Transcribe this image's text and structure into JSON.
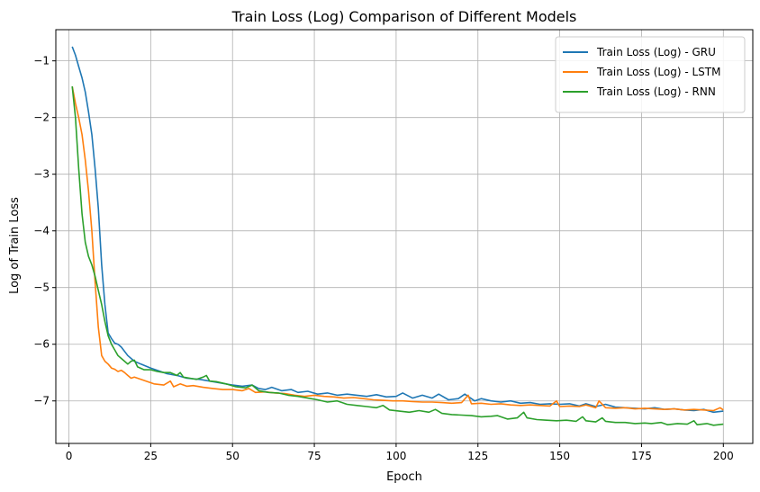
{
  "chart_data": {
    "type": "line",
    "title": "Train Loss (Log) Comparison of Different Models",
    "xlabel": "Epoch",
    "ylabel": "Log of Train Loss",
    "xlim": [
      -4,
      209
    ],
    "ylim": [
      -7.75,
      -0.45
    ],
    "xticks": [
      0,
      25,
      50,
      75,
      100,
      125,
      150,
      175,
      200
    ],
    "yticks": [
      -1,
      -2,
      -3,
      -4,
      -5,
      -6,
      -7
    ],
    "grid": true,
    "legend_position": "top-right",
    "series": [
      {
        "name": "Train Loss (Log) - GRU",
        "color": "#1f77b4",
        "points": [
          [
            1,
            -0.75
          ],
          [
            2,
            -0.9
          ],
          [
            3,
            -1.1
          ],
          [
            4,
            -1.3
          ],
          [
            5,
            -1.55
          ],
          [
            6,
            -1.9
          ],
          [
            7,
            -2.3
          ],
          [
            8,
            -2.9
          ],
          [
            9,
            -3.6
          ],
          [
            10,
            -4.6
          ],
          [
            11,
            -5.3
          ],
          [
            12,
            -5.8
          ],
          [
            13,
            -5.9
          ],
          [
            14,
            -5.98
          ],
          [
            15,
            -6.0
          ],
          [
            16,
            -6.05
          ],
          [
            18,
            -6.2
          ],
          [
            20,
            -6.3
          ],
          [
            22,
            -6.35
          ],
          [
            25,
            -6.42
          ],
          [
            28,
            -6.48
          ],
          [
            30,
            -6.52
          ],
          [
            33,
            -6.55
          ],
          [
            36,
            -6.6
          ],
          [
            40,
            -6.62
          ],
          [
            43,
            -6.65
          ],
          [
            46,
            -6.68
          ],
          [
            50,
            -6.72
          ],
          [
            53,
            -6.74
          ],
          [
            56,
            -6.72
          ],
          [
            58,
            -6.78
          ],
          [
            60,
            -6.8
          ],
          [
            62,
            -6.76
          ],
          [
            65,
            -6.82
          ],
          [
            68,
            -6.8
          ],
          [
            70,
            -6.85
          ],
          [
            73,
            -6.83
          ],
          [
            76,
            -6.88
          ],
          [
            79,
            -6.86
          ],
          [
            82,
            -6.9
          ],
          [
            85,
            -6.88
          ],
          [
            88,
            -6.9
          ],
          [
            91,
            -6.92
          ],
          [
            94,
            -6.89
          ],
          [
            97,
            -6.93
          ],
          [
            100,
            -6.92
          ],
          [
            102,
            -6.86
          ],
          [
            105,
            -6.95
          ],
          [
            108,
            -6.9
          ],
          [
            111,
            -6.95
          ],
          [
            113,
            -6.88
          ],
          [
            116,
            -6.98
          ],
          [
            119,
            -6.96
          ],
          [
            121,
            -6.88
          ],
          [
            124,
            -7.0
          ],
          [
            126,
            -6.96
          ],
          [
            129,
            -7.0
          ],
          [
            132,
            -7.02
          ],
          [
            135,
            -7.0
          ],
          [
            138,
            -7.04
          ],
          [
            141,
            -7.03
          ],
          [
            144,
            -7.06
          ],
          [
            147,
            -7.05
          ],
          [
            150,
            -7.06
          ],
          [
            153,
            -7.05
          ],
          [
            156,
            -7.09
          ],
          [
            158,
            -7.05
          ],
          [
            161,
            -7.1
          ],
          [
            164,
            -7.06
          ],
          [
            167,
            -7.11
          ],
          [
            170,
            -7.12
          ],
          [
            173,
            -7.13
          ],
          [
            176,
            -7.14
          ],
          [
            179,
            -7.12
          ],
          [
            182,
            -7.15
          ],
          [
            185,
            -7.14
          ],
          [
            188,
            -7.16
          ],
          [
            191,
            -7.17
          ],
          [
            194,
            -7.15
          ],
          [
            197,
            -7.2
          ],
          [
            200,
            -7.18
          ]
        ]
      },
      {
        "name": "Train Loss (Log) - LSTM",
        "color": "#ff7f0e",
        "points": [
          [
            1,
            -1.45
          ],
          [
            2,
            -1.75
          ],
          [
            3,
            -2.0
          ],
          [
            4,
            -2.3
          ],
          [
            5,
            -2.75
          ],
          [
            6,
            -3.3
          ],
          [
            7,
            -4.0
          ],
          [
            8,
            -4.9
          ],
          [
            9,
            -5.7
          ],
          [
            10,
            -6.2
          ],
          [
            11,
            -6.3
          ],
          [
            12,
            -6.35
          ],
          [
            13,
            -6.42
          ],
          [
            14,
            -6.44
          ],
          [
            15,
            -6.48
          ],
          [
            16,
            -6.46
          ],
          [
            17,
            -6.5
          ],
          [
            18,
            -6.55
          ],
          [
            19,
            -6.6
          ],
          [
            20,
            -6.58
          ],
          [
            22,
            -6.62
          ],
          [
            24,
            -6.66
          ],
          [
            26,
            -6.7
          ],
          [
            29,
            -6.72
          ],
          [
            31,
            -6.65
          ],
          [
            32,
            -6.75
          ],
          [
            34,
            -6.7
          ],
          [
            36,
            -6.74
          ],
          [
            38,
            -6.73
          ],
          [
            41,
            -6.76
          ],
          [
            44,
            -6.78
          ],
          [
            47,
            -6.8
          ],
          [
            50,
            -6.8
          ],
          [
            53,
            -6.82
          ],
          [
            55,
            -6.78
          ],
          [
            57,
            -6.85
          ],
          [
            60,
            -6.84
          ],
          [
            63,
            -6.86
          ],
          [
            66,
            -6.87
          ],
          [
            69,
            -6.9
          ],
          [
            72,
            -6.92
          ],
          [
            75,
            -6.9
          ],
          [
            78,
            -6.92
          ],
          [
            81,
            -6.93
          ],
          [
            84,
            -6.95
          ],
          [
            87,
            -6.94
          ],
          [
            90,
            -6.96
          ],
          [
            93,
            -6.98
          ],
          [
            96,
            -6.99
          ],
          [
            99,
            -7.0
          ],
          [
            102,
            -7.0
          ],
          [
            105,
            -7.01
          ],
          [
            108,
            -7.02
          ],
          [
            111,
            -7.02
          ],
          [
            114,
            -7.03
          ],
          [
            117,
            -7.04
          ],
          [
            120,
            -7.03
          ],
          [
            122,
            -6.9
          ],
          [
            123,
            -7.05
          ],
          [
            126,
            -7.04
          ],
          [
            129,
            -7.06
          ],
          [
            132,
            -7.05
          ],
          [
            135,
            -7.07
          ],
          [
            138,
            -7.08
          ],
          [
            141,
            -7.07
          ],
          [
            144,
            -7.08
          ],
          [
            147,
            -7.09
          ],
          [
            149,
            -7.0
          ],
          [
            150,
            -7.1
          ],
          [
            153,
            -7.09
          ],
          [
            156,
            -7.1
          ],
          [
            158,
            -7.07
          ],
          [
            161,
            -7.12
          ],
          [
            162,
            -7.0
          ],
          [
            164,
            -7.12
          ],
          [
            167,
            -7.13
          ],
          [
            170,
            -7.12
          ],
          [
            173,
            -7.14
          ],
          [
            176,
            -7.13
          ],
          [
            179,
            -7.14
          ],
          [
            182,
            -7.15
          ],
          [
            185,
            -7.14
          ],
          [
            188,
            -7.16
          ],
          [
            191,
            -7.15
          ],
          [
            194,
            -7.16
          ],
          [
            197,
            -7.17
          ],
          [
            199,
            -7.12
          ],
          [
            200,
            -7.16
          ]
        ]
      },
      {
        "name": "Train Loss (Log) - RNN",
        "color": "#2ca02c",
        "points": [
          [
            1,
            -1.45
          ],
          [
            2,
            -2.0
          ],
          [
            3,
            -2.9
          ],
          [
            4,
            -3.7
          ],
          [
            5,
            -4.2
          ],
          [
            6,
            -4.45
          ],
          [
            7,
            -4.6
          ],
          [
            8,
            -4.8
          ],
          [
            9,
            -5.05
          ],
          [
            10,
            -5.3
          ],
          [
            11,
            -5.6
          ],
          [
            12,
            -5.85
          ],
          [
            13,
            -6.0
          ],
          [
            14,
            -6.1
          ],
          [
            15,
            -6.2
          ],
          [
            16,
            -6.25
          ],
          [
            17,
            -6.3
          ],
          [
            18,
            -6.35
          ],
          [
            19,
            -6.3
          ],
          [
            20,
            -6.28
          ],
          [
            21,
            -6.4
          ],
          [
            23,
            -6.45
          ],
          [
            25,
            -6.45
          ],
          [
            27,
            -6.48
          ],
          [
            29,
            -6.5
          ],
          [
            31,
            -6.5
          ],
          [
            33,
            -6.55
          ],
          [
            34,
            -6.5
          ],
          [
            35,
            -6.58
          ],
          [
            37,
            -6.6
          ],
          [
            39,
            -6.62
          ],
          [
            41,
            -6.58
          ],
          [
            42,
            -6.55
          ],
          [
            43,
            -6.65
          ],
          [
            45,
            -6.66
          ],
          [
            48,
            -6.7
          ],
          [
            51,
            -6.75
          ],
          [
            54,
            -6.77
          ],
          [
            56,
            -6.72
          ],
          [
            58,
            -6.82
          ],
          [
            61,
            -6.85
          ],
          [
            64,
            -6.86
          ],
          [
            67,
            -6.9
          ],
          [
            70,
            -6.92
          ],
          [
            73,
            -6.95
          ],
          [
            76,
            -6.98
          ],
          [
            79,
            -7.02
          ],
          [
            82,
            -7.0
          ],
          [
            85,
            -7.06
          ],
          [
            88,
            -7.08
          ],
          [
            91,
            -7.1
          ],
          [
            94,
            -7.12
          ],
          [
            96,
            -7.08
          ],
          [
            98,
            -7.16
          ],
          [
            101,
            -7.18
          ],
          [
            104,
            -7.2
          ],
          [
            107,
            -7.17
          ],
          [
            110,
            -7.2
          ],
          [
            112,
            -7.15
          ],
          [
            114,
            -7.22
          ],
          [
            117,
            -7.24
          ],
          [
            120,
            -7.25
          ],
          [
            123,
            -7.26
          ],
          [
            126,
            -7.28
          ],
          [
            129,
            -7.27
          ],
          [
            131,
            -7.26
          ],
          [
            134,
            -7.32
          ],
          [
            137,
            -7.3
          ],
          [
            139,
            -7.2
          ],
          [
            140,
            -7.3
          ],
          [
            143,
            -7.33
          ],
          [
            146,
            -7.34
          ],
          [
            149,
            -7.35
          ],
          [
            152,
            -7.34
          ],
          [
            155,
            -7.36
          ],
          [
            157,
            -7.28
          ],
          [
            158,
            -7.35
          ],
          [
            161,
            -7.37
          ],
          [
            163,
            -7.3
          ],
          [
            164,
            -7.36
          ],
          [
            167,
            -7.38
          ],
          [
            170,
            -7.38
          ],
          [
            173,
            -7.4
          ],
          [
            176,
            -7.39
          ],
          [
            178,
            -7.4
          ],
          [
            181,
            -7.38
          ],
          [
            183,
            -7.42
          ],
          [
            186,
            -7.4
          ],
          [
            189,
            -7.41
          ],
          [
            191,
            -7.35
          ],
          [
            192,
            -7.42
          ],
          [
            195,
            -7.4
          ],
          [
            197,
            -7.43
          ],
          [
            200,
            -7.41
          ]
        ]
      }
    ]
  }
}
